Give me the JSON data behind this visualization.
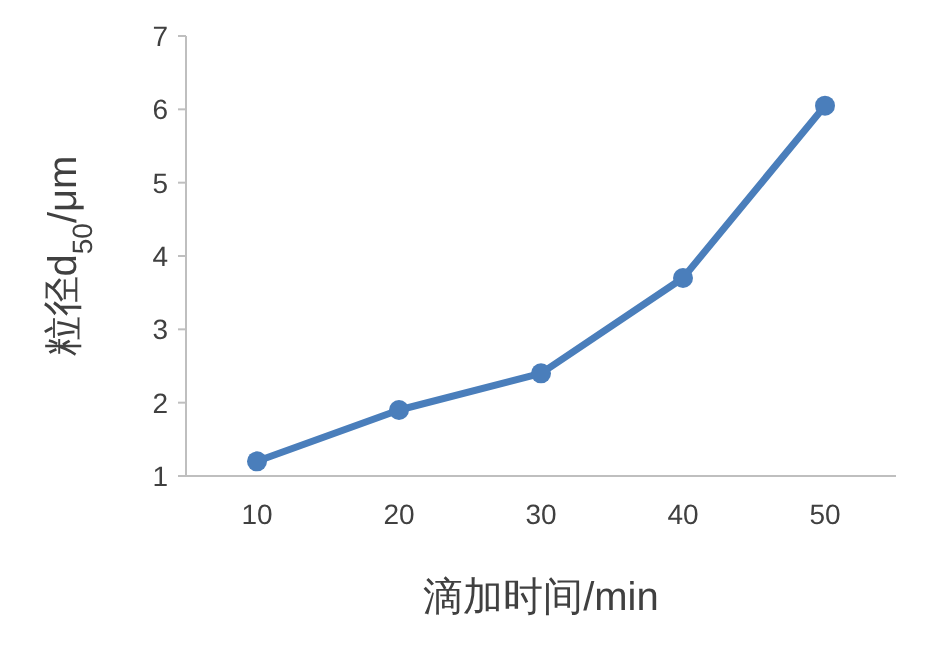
{
  "chart_data": {
    "type": "line",
    "xlabel": "滴加时间/min",
    "ylabel": "粒径d$_{50}$/μm",
    "categories": [
      "10",
      "20",
      "30",
      "40",
      "50"
    ],
    "series": [
      {
        "color": "#4a7ebb",
        "values": [
          1.2,
          1.9,
          2.4,
          3.7,
          6.05
        ]
      }
    ],
    "ylim": [
      1,
      7
    ],
    "yticks": [
      1,
      2,
      3,
      4,
      5,
      6,
      7
    ],
    "marker": "circle",
    "line_style": "solid",
    "grid": false
  }
}
